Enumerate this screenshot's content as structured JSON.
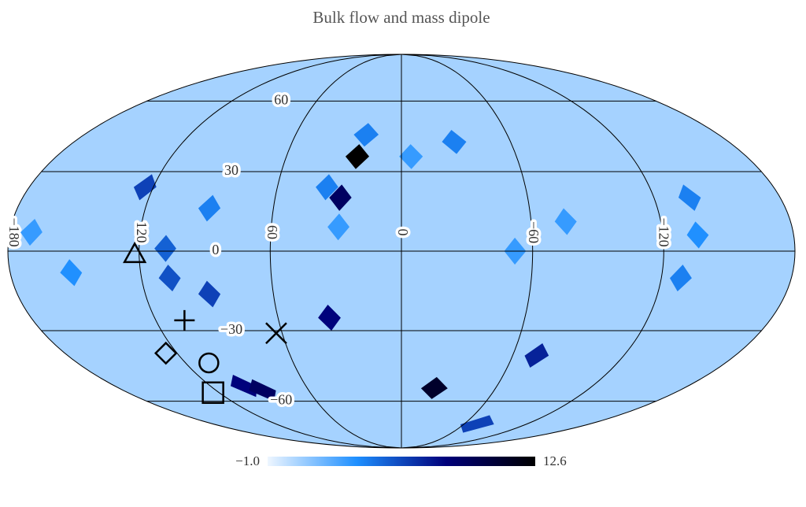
{
  "chart_data": {
    "type": "mollweide",
    "title": "Bulk flow and mass dipole",
    "colormap": [
      "#eef6ff",
      "#1e8fff",
      "#00007a",
      "#000000"
    ],
    "background_value": 0.6,
    "clim": [
      {
        "value": -1.0,
        "label": "−1.0"
      },
      12.6
    ],
    "parallels": [
      60,
      30,
      0,
      {
        "value": -30,
        "label": "−30"
      },
      {
        "value": -60,
        "label": "−60"
      }
    ],
    "meridians": [
      {
        "value": -180,
        "label": "−180"
      },
      120,
      60,
      0,
      {
        "value": -60,
        "label": "−60"
      },
      {
        "value": -120,
        "label": "−120"
      }
    ],
    "pixels": [
      {
        "lon": 23,
        "lat": 36,
        "value": 12.6
      },
      {
        "lon": 29,
        "lat": 20,
        "value": 9
      },
      {
        "lon": 35,
        "lat": -25,
        "value": 8
      },
      {
        "lon": -21,
        "lat": -54,
        "value": 11
      },
      {
        "lon": 99,
        "lat": -53,
        "value": 8
      },
      {
        "lon": 90,
        "lat": -55,
        "value": 9
      },
      {
        "lon": 124,
        "lat": 24,
        "value": 6
      },
      {
        "lon": 90,
        "lat": 16,
        "value": 4
      },
      {
        "lon": 108,
        "lat": 1,
        "value": 5
      },
      {
        "lon": 107,
        "lat": -10,
        "value": 5.5
      },
      {
        "lon": 90,
        "lat": -16,
        "value": 6
      },
      {
        "lon": 152,
        "lat": -8,
        "value": 3.5
      },
      {
        "lon": 170,
        "lat": 7,
        "value": 3
      },
      {
        "lon": -137,
        "lat": 20,
        "value": 4
      },
      {
        "lon": -136,
        "lat": 6,
        "value": 3.5
      },
      {
        "lon": -129,
        "lat": -10,
        "value": 4
      },
      {
        "lon": -29,
        "lat": 42,
        "value": 4
      },
      {
        "lon": -5,
        "lat": 36,
        "value": 3
      },
      {
        "lon": 20,
        "lat": 45,
        "value": 4
      },
      {
        "lon": -76,
        "lat": 11,
        "value": 3
      },
      {
        "lon": -73,
        "lat": -72,
        "value": 6
      },
      {
        "lon": -73,
        "lat": -40,
        "value": 7
      },
      {
        "lon": 29,
        "lat": 9,
        "value": 3
      },
      {
        "lon": 36,
        "lat": 24,
        "value": 4
      },
      {
        "lon": -52,
        "lat": 0,
        "value": 3
      }
    ],
    "markers": [
      {
        "shape": "triangle",
        "lon": 122,
        "lat": -1
      },
      {
        "shape": "plus",
        "lon": 106,
        "lat": -26
      },
      {
        "shape": "diamond",
        "lon": 126,
        "lat": -39
      },
      {
        "shape": "circle",
        "lon": 107,
        "lat": -43
      },
      {
        "shape": "square",
        "lon": 124,
        "lat": -56
      },
      {
        "shape": "cross",
        "lon": 63,
        "lat": -31
      }
    ]
  }
}
